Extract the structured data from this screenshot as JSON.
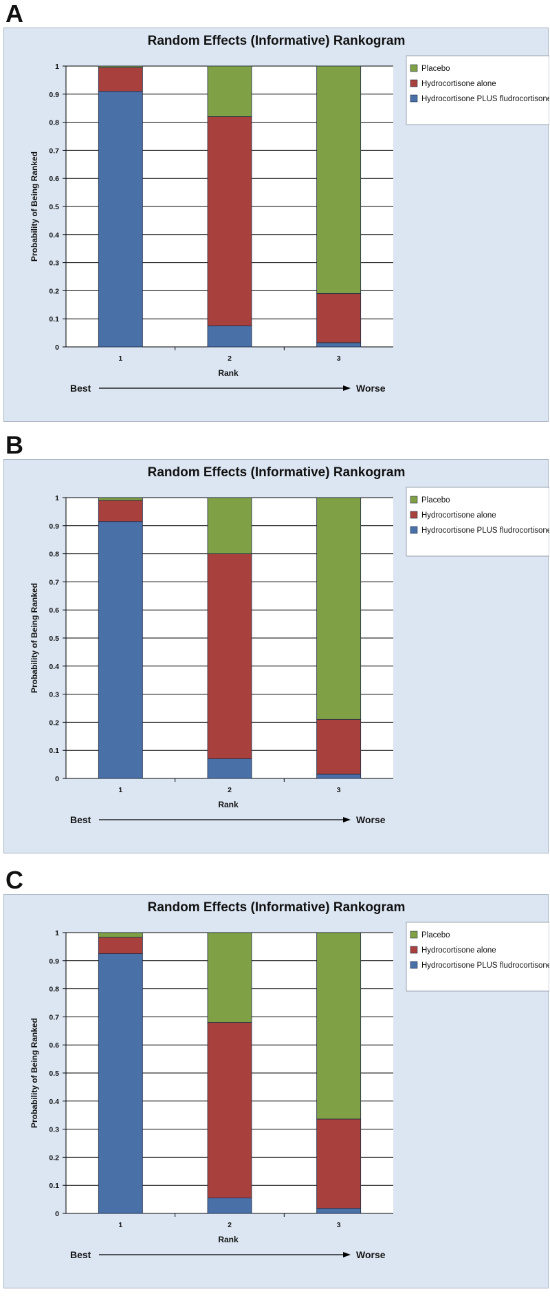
{
  "chart_data": [
    {
      "panel": "A",
      "type": "bar",
      "stacked": true,
      "title": "Random Effects  (Informative) Rankogram",
      "xlabel": "Rank",
      "ylabel": "Probability of Being Ranked",
      "categories": [
        "1",
        "2",
        "3"
      ],
      "ylim": [
        0,
        1
      ],
      "yticks": [
        "0",
        "0.1",
        "0.2",
        "0.3",
        "0.4",
        "0.5",
        "0.6",
        "0.7",
        "0.8",
        "0.9",
        "1"
      ],
      "grid": true,
      "legend_position": "right",
      "series": [
        {
          "name": "Hydrocortisone PLUS fludrocortisone",
          "color": "#4a70a8",
          "values": [
            0.91,
            0.075,
            0.015
          ]
        },
        {
          "name": "Hydrocortisone alone",
          "color": "#a8403e",
          "values": [
            0.085,
            0.745,
            0.175
          ]
        },
        {
          "name": "Placebo",
          "color": "#80a045",
          "values": [
            0.005,
            0.18,
            0.81
          ]
        }
      ],
      "legend_order": [
        "Placebo",
        "Hydrocortisone alone",
        "Hydrocortisone PLUS fludrocortisone"
      ],
      "direction": {
        "left": "Best",
        "right": "Worse"
      }
    },
    {
      "panel": "B",
      "type": "bar",
      "stacked": true,
      "title": "Random Effects  (Informative) Rankogram",
      "xlabel": "Rank",
      "ylabel": "Probability of Being Ranked",
      "categories": [
        "1",
        "2",
        "3"
      ],
      "ylim": [
        0,
        1
      ],
      "yticks": [
        "0",
        "0.1",
        "0.2",
        "0.3",
        "0.4",
        "0.5",
        "0.6",
        "0.7",
        "0.8",
        "0.9",
        "1"
      ],
      "grid": true,
      "legend_position": "right",
      "series": [
        {
          "name": "Hydrocortisone PLUS fludrocortisone",
          "color": "#4a70a8",
          "values": [
            0.915,
            0.07,
            0.015
          ]
        },
        {
          "name": "Hydrocortisone alone",
          "color": "#a8403e",
          "values": [
            0.075,
            0.73,
            0.195
          ]
        },
        {
          "name": "Placebo",
          "color": "#80a045",
          "values": [
            0.01,
            0.2,
            0.79
          ]
        }
      ],
      "legend_order": [
        "Placebo",
        "Hydrocortisone alone",
        "Hydrocortisone PLUS fludrocortisone"
      ],
      "direction": {
        "left": "Best",
        "right": "Worse"
      }
    },
    {
      "panel": "C",
      "type": "bar",
      "stacked": true,
      "title": "Random Effects  (Informative) Rankogram",
      "xlabel": "Rank",
      "ylabel": "Probability of Being Ranked",
      "categories": [
        "1",
        "2",
        "3"
      ],
      "ylim": [
        0,
        1
      ],
      "yticks": [
        "0",
        "0.1",
        "0.2",
        "0.3",
        "0.4",
        "0.5",
        "0.6",
        "0.7",
        "0.8",
        "0.9",
        "1"
      ],
      "grid": true,
      "legend_position": "right",
      "series": [
        {
          "name": "Hydrocortisone PLUS fludrocortisone",
          "color": "#4a70a8",
          "values": [
            0.925,
            0.055,
            0.018
          ]
        },
        {
          "name": "Hydrocortisone alone",
          "color": "#a8403e",
          "values": [
            0.058,
            0.625,
            0.318
          ]
        },
        {
          "name": "Placebo",
          "color": "#80a045",
          "values": [
            0.017,
            0.32,
            0.664
          ]
        }
      ],
      "legend_order": [
        "Placebo",
        "Hydrocortisone alone",
        "Hydrocortisone PLUS fludrocortisone"
      ],
      "direction": {
        "left": "Best",
        "right": "Worse"
      }
    }
  ]
}
